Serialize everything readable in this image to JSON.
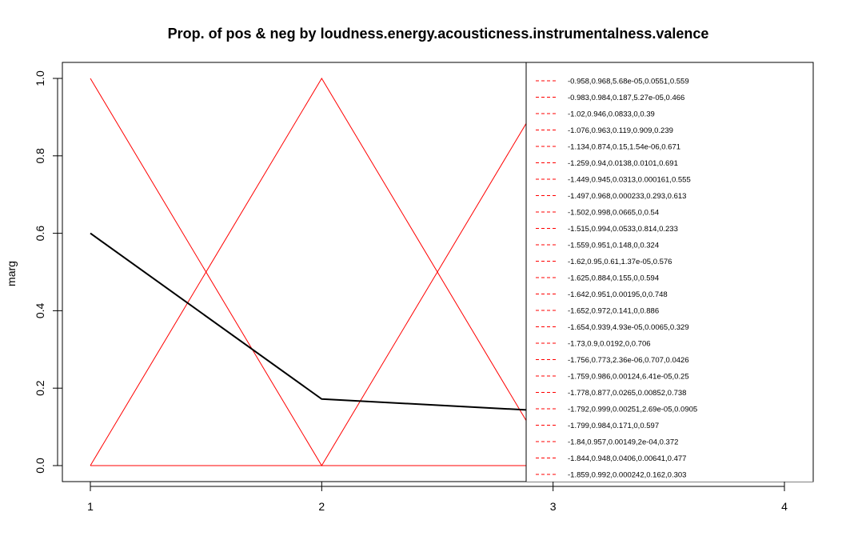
{
  "chart_data": {
    "type": "line",
    "title": "Prop. of pos & neg by loudness.energy.acousticness.instrumentalness.valence",
    "xlabel": "",
    "ylabel": "marg",
    "x": [
      1,
      2,
      3,
      4
    ],
    "x_tick_labels": [
      "1",
      "2",
      "3",
      "4"
    ],
    "y_tick_labels": [
      "0.0",
      "0.2",
      "0.4",
      "0.6",
      "0.8",
      "1.0"
    ],
    "y_ticks": [
      0,
      0.2,
      0.4,
      0.6,
      0.8,
      1.0
    ],
    "xlim": [
      1,
      4
    ],
    "ylim": [
      0,
      1
    ],
    "marginal_series": {
      "color": "#000000",
      "values": [
        0.6,
        0.172,
        0.14,
        null
      ]
    },
    "red_series_color": "#ff0000",
    "red_series": [
      {
        "values": [
          1,
          0,
          1,
          0
        ]
      },
      {
        "values": [
          0,
          1,
          0,
          1
        ]
      },
      {
        "values": [
          0,
          0,
          0,
          0
        ]
      }
    ],
    "legend": {
      "position": "right",
      "line_style": "dashed",
      "line_color": "#ff0000",
      "entries": [
        "-0.958,0.968,5.68e-05,0.0551,0.559",
        "-0.983,0.984,0.187,5.27e-05,0.466",
        "-1.02,0.946,0.0833,0,0.39",
        "-1.076,0.963,0.119,0.909,0.239",
        "-1.134,0.874,0.15,1.54e-06,0.671",
        "-1.259,0.94,0.0138,0.0101,0.691",
        "-1.449,0.945,0.0313,0.000161,0.555",
        "-1.497,0.968,0.000233,0.293,0.613",
        "-1.502,0.998,0.0665,0,0.54",
        "-1.515,0.994,0.0533,0.814,0.233",
        "-1.559,0.951,0.148,0,0.324",
        "-1.62,0.95,0.61,1.37e-05,0.576",
        "-1.625,0.884,0.155,0,0.594",
        "-1.642,0.951,0.00195,0,0.748",
        "-1.652,0.972,0.141,0,0.886",
        "-1.654,0.939,4.93e-05,0.0065,0.329",
        "-1.73,0.9,0.0192,0,0.706",
        "-1.756,0.773,2.36e-06,0.707,0.0426",
        "-1.759,0.986,0.00124,6.41e-05,0.25",
        "-1.778,0.877,0.0265,0.00852,0.738",
        "-1.792,0.999,0.00251,2.69e-05,0.0905",
        "-1.799,0.984,0.171,0,0.597",
        "-1.84,0.957,0.00149,2e-04,0.372",
        "-1.844,0.948,0.0406,0.00641,0.477",
        "-1.859,0.992,0.000242,0.162,0.303"
      ]
    }
  }
}
